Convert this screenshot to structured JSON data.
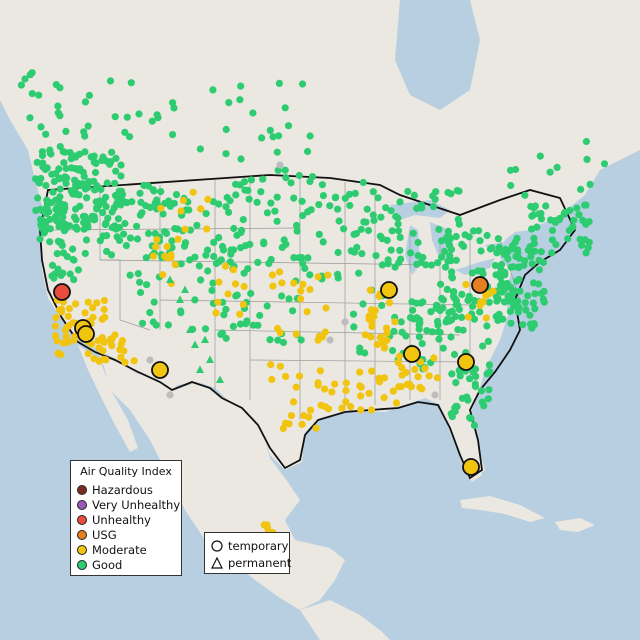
{
  "legend": {
    "title": "Air Quality Index",
    "categories": [
      {
        "label": "Hazardous",
        "color": "#7e2b22"
      },
      {
        "label": "Very Unhealthy",
        "color": "#9b59b6"
      },
      {
        "label": "Unhealthy",
        "color": "#e74c3c"
      },
      {
        "label": "USG",
        "color": "#e67e22"
      },
      {
        "label": "Moderate",
        "color": "#f1c40f"
      },
      {
        "label": "Good",
        "color": "#2ecc71"
      }
    ]
  },
  "site_types": [
    {
      "label": "temporary",
      "symbol": "circle-icon"
    },
    {
      "label": "permanent",
      "symbol": "triangle-icon"
    }
  ],
  "colors": {
    "water": "#b7cfe0",
    "land": "#ebe7e1",
    "border": "#111111",
    "state_line": "#9a9a9a",
    "no_data": "#bdbdbd"
  }
}
